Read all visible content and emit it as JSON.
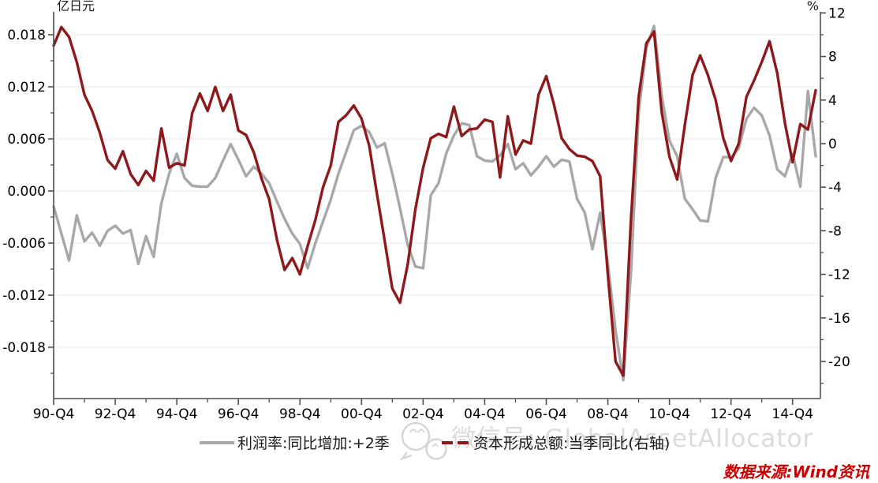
{
  "page": {
    "background": "#ffffff"
  },
  "watermark": {
    "icon": "wechat-icon",
    "text": "微信号: GlobalAssetAllocator",
    "color": "#dbdbdb"
  },
  "source_note": {
    "text": "数据来源:Wind资讯",
    "color": "#cc0000"
  },
  "legend": [
    {
      "label": "利润率:同比增加:+2季",
      "color": "#a8a8a8",
      "style": "solid"
    },
    {
      "label": "资本形成总额:当季同比(右轴)",
      "color": "#8e191c",
      "style": "dashed"
    }
  ],
  "chart_data": {
    "type": "line",
    "title": "",
    "x_tick_labels": [
      "90-Q4",
      "92-Q4",
      "94-Q4",
      "96-Q4",
      "98-Q4",
      "00-Q4",
      "02-Q4",
      "04-Q4",
      "06-Q4",
      "08-Q4",
      "10-Q4",
      "12-Q4",
      "14-Q4"
    ],
    "x_points_per_tick": 8,
    "x_minor_tick_offset": 4,
    "grid": "horizontal-faint",
    "legend_position": "bottom",
    "left_axis": {
      "title": "亿日元",
      "tick_labels": [
        "0.018",
        "0.012",
        "0.006",
        "0.000",
        "-0.006",
        "-0.012",
        "-0.018"
      ],
      "tick_values": [
        0.018,
        0.012,
        0.006,
        0.0,
        -0.006,
        -0.012,
        -0.018
      ],
      "minor_tick_values": [
        0.021,
        0.015,
        0.009,
        0.003,
        -0.003,
        -0.009,
        -0.015,
        -0.021
      ],
      "range": [
        -0.024,
        0.0206
      ]
    },
    "right_axis": {
      "title": "%",
      "tick_labels": [
        "12",
        "8",
        "4",
        "0",
        "-4",
        "-8",
        "-12",
        "-16",
        "-20"
      ],
      "tick_values": [
        12,
        8,
        4,
        0,
        -4,
        -8,
        -12,
        -16,
        -20
      ],
      "minor_tick_values": [
        10,
        6,
        2,
        -2,
        -6,
        -10,
        -14,
        -18,
        -22
      ],
      "range": [
        -23.4,
        12
      ]
    },
    "series": [
      {
        "name": "利润率:同比增加:+2季",
        "axis": "left",
        "color": "#a8a8a8",
        "values": [
          -0.0018,
          -0.0049,
          -0.008,
          -0.0028,
          -0.0058,
          -0.0048,
          -0.0063,
          -0.0046,
          -0.004,
          -0.0049,
          -0.0045,
          -0.0084,
          -0.0052,
          -0.0076,
          -0.0014,
          0.002,
          0.0043,
          0.0015,
          0.0006,
          0.0005,
          0.0005,
          0.0015,
          0.0035,
          0.0054,
          0.0036,
          0.0017,
          0.0028,
          0.002,
          0.0009,
          -0.0012,
          -0.0032,
          -0.0049,
          -0.0061,
          -0.0089,
          -0.006,
          -0.0035,
          -0.001,
          0.002,
          0.0045,
          0.007,
          0.0075,
          0.0068,
          0.005,
          0.0055,
          0.002,
          -0.002,
          -0.0062,
          -0.0087,
          -0.0089,
          -0.0005,
          0.0009,
          0.0043,
          0.0064,
          0.0078,
          0.0076,
          0.004,
          0.0035,
          0.0034,
          0.0041,
          0.0054,
          0.0025,
          0.0032,
          0.0018,
          0.0028,
          0.004,
          0.0028,
          0.0036,
          0.0034,
          -0.0009,
          -0.0025,
          -0.0067,
          -0.0025,
          -0.0083,
          -0.016,
          -0.0218,
          -0.0095,
          0.009,
          0.0165,
          0.019,
          0.011,
          0.0058,
          0.004,
          -0.0009,
          -0.0021,
          -0.0034,
          -0.0035,
          0.0015,
          0.0039,
          0.0039,
          0.0049,
          0.0083,
          0.0096,
          0.0087,
          0.0064,
          0.0025,
          0.0017,
          0.0043,
          0.0005,
          0.0115,
          0.004
        ]
      },
      {
        "name": "资本形成总额:当季同比(右轴)",
        "axis": "right",
        "color": "#8e191c",
        "values": [
          9.0,
          10.7,
          9.8,
          7.5,
          4.5,
          3.0,
          1.0,
          -1.5,
          -2.3,
          -0.7,
          -2.8,
          -3.8,
          -2.5,
          -3.4,
          1.4,
          -2.2,
          -1.8,
          -2.0,
          2.8,
          4.6,
          3.0,
          5.2,
          3.0,
          4.5,
          1.2,
          0.8,
          -0.8,
          -3.2,
          -5.1,
          -8.8,
          -11.6,
          -10.5,
          -12.0,
          -9.4,
          -7.0,
          -4.0,
          -2.0,
          2.0,
          2.6,
          3.5,
          2.3,
          -0.2,
          -4.6,
          -8.9,
          -13.3,
          -14.6,
          -11.1,
          -6.0,
          -2.2,
          0.5,
          0.9,
          0.6,
          3.4,
          0.7,
          1.3,
          1.4,
          2.2,
          2.0,
          -3.1,
          2.5,
          -1.0,
          0.3,
          0.0,
          4.5,
          6.2,
          3.6,
          0.5,
          -0.5,
          -1.1,
          -1.2,
          -1.6,
          -3.0,
          -12.0,
          -20.0,
          -21.3,
          -7.0,
          4.3,
          9.2,
          10.3,
          2.9,
          -1.2,
          -3.3,
          1.7,
          6.3,
          8.1,
          6.3,
          4.0,
          0.5,
          -1.6,
          0.0,
          4.3,
          5.8,
          7.5,
          9.4,
          6.5,
          1.9,
          -1.7,
          1.8,
          1.3,
          4.9
        ]
      }
    ]
  }
}
